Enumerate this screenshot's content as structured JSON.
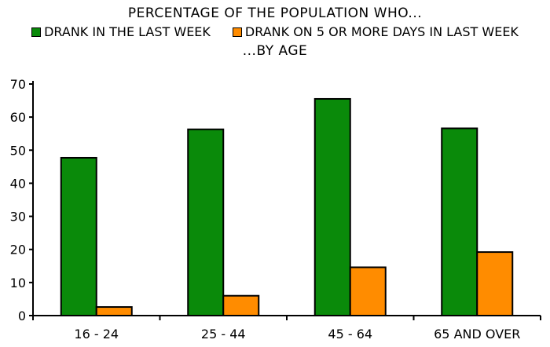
{
  "chart_data": {
    "type": "bar",
    "title": "PERCENTAGE OF THE POPULATION WHO...",
    "subtitle": "...BY AGE",
    "categories": [
      "16 - 24",
      "25 - 44",
      "45 - 64",
      "65 AND OVER"
    ],
    "series": [
      {
        "name": "DRANK IN THE LAST WEEK",
        "color": "#0a8a0a",
        "values": [
          47.7,
          56.3,
          65.5,
          56.6
        ]
      },
      {
        "name": "DRANK ON 5 OR MORE DAYS IN LAST WEEK",
        "color": "#ff8c00",
        "values": [
          2.6,
          6.0,
          14.6,
          19.2
        ]
      }
    ],
    "ylim": [
      0,
      70
    ],
    "yticks": [
      0,
      10,
      20,
      30,
      40,
      50,
      60,
      70
    ],
    "xlabel": "",
    "ylabel": "",
    "grid": false,
    "legend_position": "top"
  }
}
